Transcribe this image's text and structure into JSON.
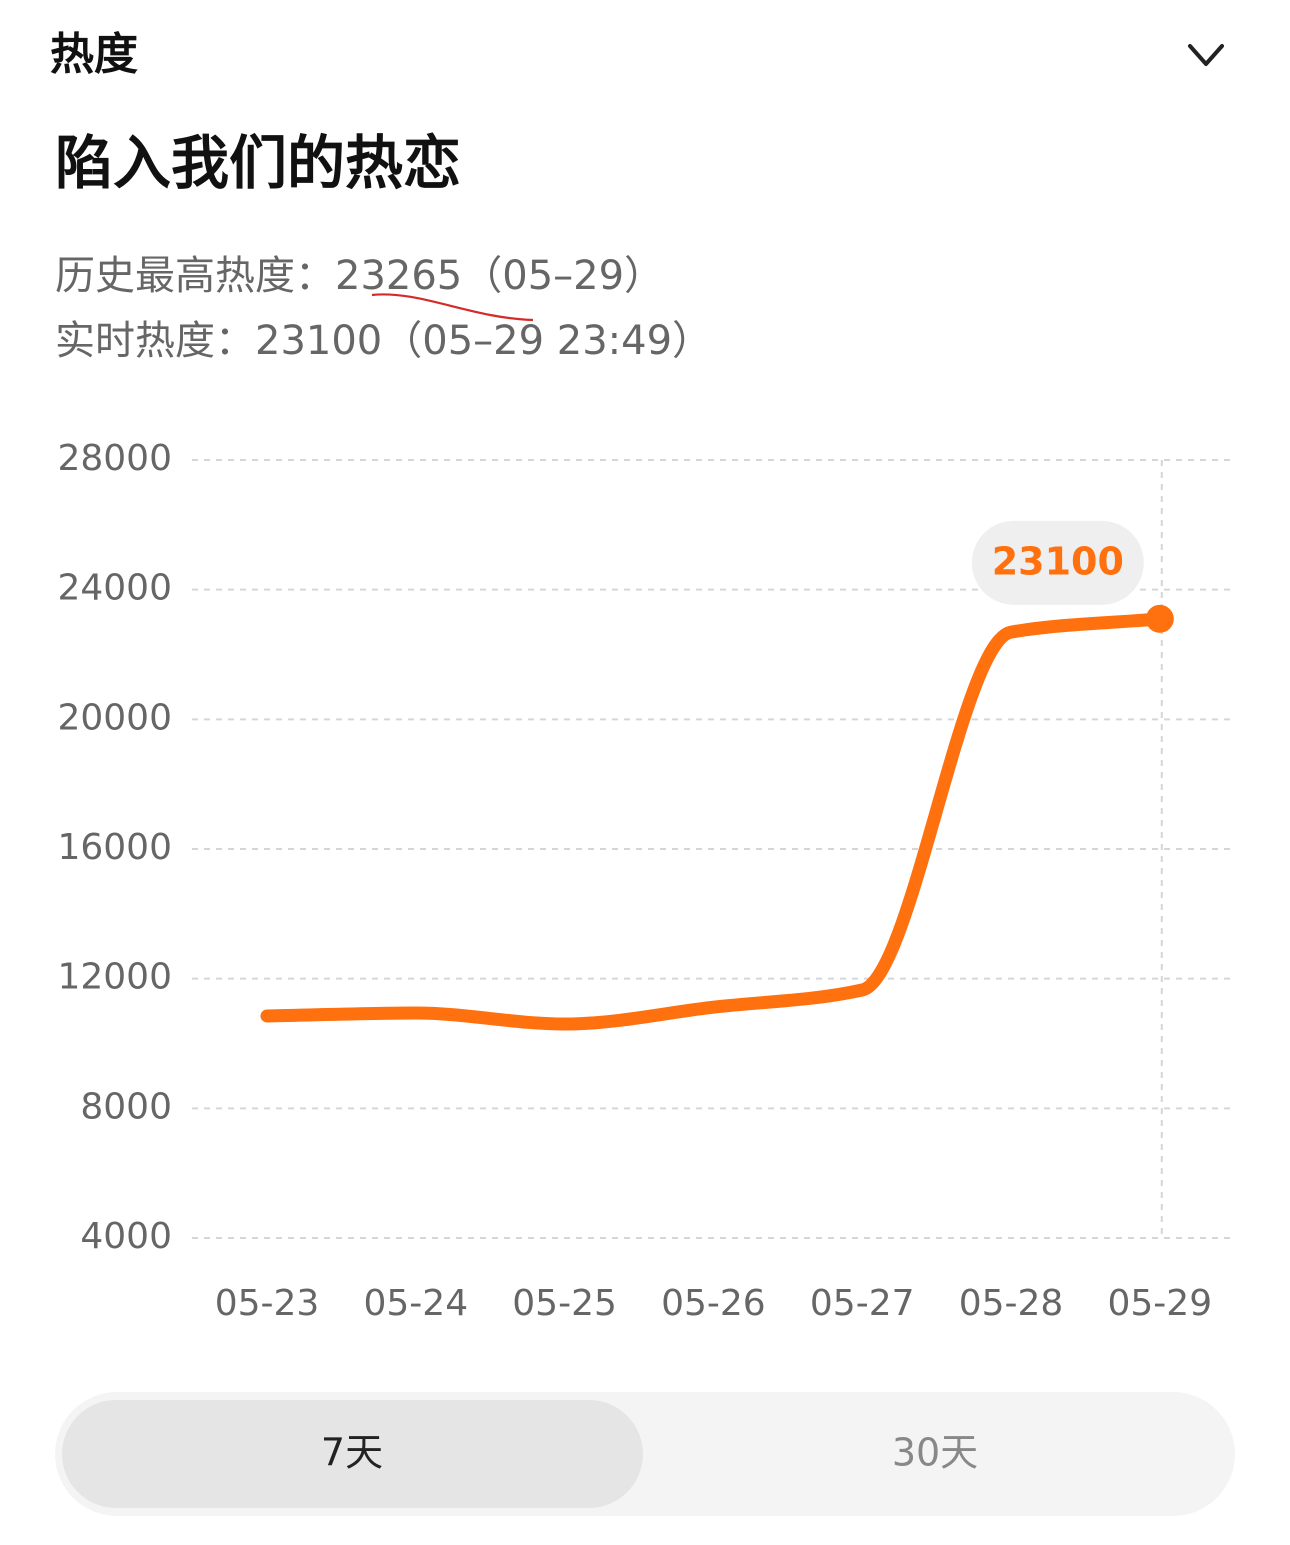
{
  "header": {
    "title": "热度"
  },
  "topic": {
    "title": "陷入我们的热恋"
  },
  "stats": {
    "history_label": "历史最高热度：",
    "history_value": "23265",
    "history_date": "（05–29）",
    "realtime_label": "实时热度：",
    "realtime_value": "23100",
    "realtime_date": "（05–29 23:49）"
  },
  "chart_data": {
    "type": "line",
    "categories": [
      "05-23",
      "05-24",
      "05-25",
      "05-26",
      "05-27",
      "05-28",
      "05-29"
    ],
    "series": [
      {
        "color": "#ff700f",
        "values": [
          10850,
          10940,
          10600,
          11120,
          11650,
          22690,
          23100
        ]
      }
    ],
    "ylim": [
      4000,
      28000
    ],
    "yticks": [
      4000,
      8000,
      12000,
      16000,
      20000,
      24000,
      28000
    ],
    "grid": true
  },
  "tabs": [
    "7天",
    "30天"
  ]
}
